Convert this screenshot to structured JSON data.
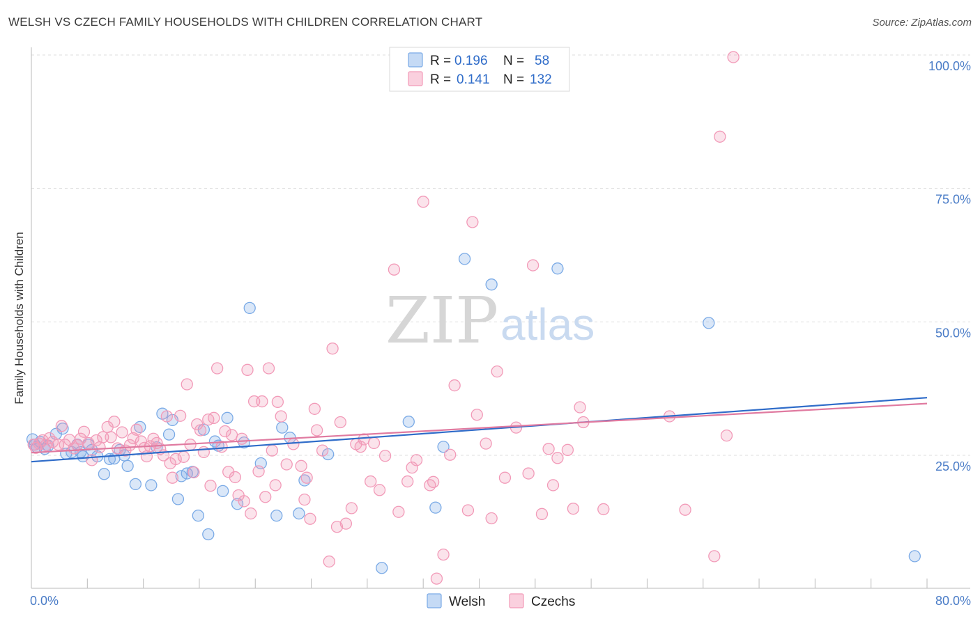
{
  "title": "WELSH VS CZECH FAMILY HOUSEHOLDS WITH CHILDREN CORRELATION CHART",
  "source": "Source: ZipAtlas.com",
  "watermark": {
    "zip": "ZIP",
    "atlas": "atlas"
  },
  "legend_box": {
    "rows": [
      {
        "r_label": "R = ",
        "r_value": "0.196",
        "n_label": "N = ",
        "n_value": "58",
        "color": "#7aaae6"
      },
      {
        "r_label": "R = ",
        "r_value": "0.141",
        "n_label": "N = ",
        "n_value": "132",
        "color": "#f29ab8"
      }
    ]
  },
  "chart_data": {
    "type": "scatter",
    "title": "WELSH VS CZECH FAMILY HOUSEHOLDS WITH CHILDREN CORRELATION CHART",
    "xlabel": "",
    "ylabel": "Family Households with Children",
    "xlim": [
      0,
      80
    ],
    "ylim": [
      0,
      102
    ],
    "x_tick_labels": [
      "0.0%",
      "80.0%"
    ],
    "y_tick_labels": [
      "25.0%",
      "50.0%",
      "75.0%",
      "100.0%"
    ],
    "y_ticks": [
      25,
      50,
      75,
      100
    ],
    "grid": true,
    "legend_position": "bottom-center",
    "series": [
      {
        "name": "Welsh",
        "color": "#7aaae6",
        "line_color": "#2f6cc9",
        "trend": {
          "x": [
            0,
            80
          ],
          "y": [
            23.8,
            35.8
          ]
        },
        "points": [
          [
            0.1,
            28
          ],
          [
            0.3,
            27
          ],
          [
            0.5,
            26.5
          ],
          [
            0.8,
            27.5
          ],
          [
            1.2,
            26.2
          ],
          [
            1.5,
            26.8
          ],
          [
            2.2,
            29
          ],
          [
            2.8,
            30
          ],
          [
            3.1,
            25.3
          ],
          [
            3.6,
            25.6
          ],
          [
            4.1,
            27
          ],
          [
            4.4,
            25.6
          ],
          [
            4.6,
            24.8
          ],
          [
            5.1,
            27
          ],
          [
            5.4,
            26
          ],
          [
            5.9,
            24.8
          ],
          [
            6.5,
            21.5
          ],
          [
            7.0,
            24.3
          ],
          [
            7.4,
            24.4
          ],
          [
            7.9,
            26
          ],
          [
            8.3,
            25
          ],
          [
            8.6,
            23
          ],
          [
            9.3,
            19.6
          ],
          [
            9.7,
            30.3
          ],
          [
            10.7,
            19.4
          ],
          [
            11.2,
            26.5
          ],
          [
            11.7,
            32.8
          ],
          [
            12.3,
            28.9
          ],
          [
            12.6,
            31.6
          ],
          [
            13.1,
            16.8
          ],
          [
            13.4,
            21.1
          ],
          [
            13.9,
            21.6
          ],
          [
            14.4,
            21.9
          ],
          [
            14.9,
            13.7
          ],
          [
            15.4,
            29.8
          ],
          [
            15.8,
            10.2
          ],
          [
            16.4,
            27.6
          ],
          [
            16.7,
            26.8
          ],
          [
            17.1,
            18.3
          ],
          [
            17.5,
            32
          ],
          [
            18.4,
            15.9
          ],
          [
            19.0,
            27.4
          ],
          [
            19.5,
            52.6
          ],
          [
            20.5,
            23.5
          ],
          [
            21.9,
            13.7
          ],
          [
            22.4,
            30.2
          ],
          [
            23.1,
            28.3
          ],
          [
            23.9,
            14.1
          ],
          [
            24.4,
            20.3
          ],
          [
            26.5,
            25.2
          ],
          [
            31.3,
            3.9
          ],
          [
            33.7,
            31.3
          ],
          [
            36.1,
            15.2
          ],
          [
            36.8,
            26.6
          ],
          [
            38.7,
            61.8
          ],
          [
            41.1,
            57
          ],
          [
            47.0,
            60
          ],
          [
            60.5,
            49.8
          ],
          [
            78.9,
            6.1
          ]
        ]
      },
      {
        "name": "Czechs",
        "color": "#f29ab8",
        "line_color": "#e07aa0",
        "trend": {
          "x": [
            0,
            80
          ],
          "y": [
            25.5,
            34.7
          ]
        },
        "points": [
          [
            0.2,
            27
          ],
          [
            0.4,
            26.4
          ],
          [
            0.7,
            27.2
          ],
          [
            1.0,
            27.8
          ],
          [
            1.3,
            26.9
          ],
          [
            1.6,
            28.2
          ],
          [
            1.9,
            27.5
          ],
          [
            2.4,
            27
          ],
          [
            2.7,
            30.5
          ],
          [
            3.0,
            27
          ],
          [
            3.4,
            27.9
          ],
          [
            3.8,
            26.3
          ],
          [
            4.1,
            26.9
          ],
          [
            4.4,
            28.1
          ],
          [
            4.7,
            29.4
          ],
          [
            5.1,
            27.3
          ],
          [
            5.4,
            24.1
          ],
          [
            5.8,
            27.8
          ],
          [
            6.1,
            26.5
          ],
          [
            6.4,
            28.4
          ],
          [
            6.8,
            30.3
          ],
          [
            7.1,
            28.4
          ],
          [
            7.4,
            31.3
          ],
          [
            7.7,
            26.3
          ],
          [
            8.1,
            29.3
          ],
          [
            8.4,
            25.9
          ],
          [
            8.8,
            26.9
          ],
          [
            9.1,
            28.2
          ],
          [
            9.4,
            29.8
          ],
          [
            9.8,
            27.6
          ],
          [
            10.1,
            26.4
          ],
          [
            10.3,
            24.8
          ],
          [
            10.6,
            26.7
          ],
          [
            10.9,
            28.1
          ],
          [
            11.2,
            27.3
          ],
          [
            11.5,
            26.2
          ],
          [
            11.8,
            25
          ],
          [
            12.1,
            32.3
          ],
          [
            12.4,
            23.5
          ],
          [
            12.6,
            20.8
          ],
          [
            12.9,
            24.3
          ],
          [
            13.3,
            32.4
          ],
          [
            13.6,
            24.7
          ],
          [
            13.9,
            38.3
          ],
          [
            14.2,
            27
          ],
          [
            14.5,
            21.8
          ],
          [
            14.8,
            30.8
          ],
          [
            15.1,
            29.7
          ],
          [
            15.4,
            25.6
          ],
          [
            15.8,
            31.7
          ],
          [
            16.0,
            19.3
          ],
          [
            16.3,
            32
          ],
          [
            16.6,
            41.3
          ],
          [
            17.0,
            26.6
          ],
          [
            17.3,
            29.5
          ],
          [
            17.6,
            21.9
          ],
          [
            17.9,
            28.8
          ],
          [
            18.2,
            20.9
          ],
          [
            18.5,
            17.5
          ],
          [
            18.8,
            28.1
          ],
          [
            19.0,
            16.4
          ],
          [
            19.3,
            41
          ],
          [
            19.6,
            14.1
          ],
          [
            19.9,
            35.1
          ],
          [
            20.3,
            22
          ],
          [
            20.6,
            35.1
          ],
          [
            20.9,
            17.2
          ],
          [
            21.2,
            41.3
          ],
          [
            21.5,
            25.9
          ],
          [
            21.8,
            19.4
          ],
          [
            22.0,
            35
          ],
          [
            22.3,
            32.3
          ],
          [
            22.8,
            23.3
          ],
          [
            23.4,
            27.1
          ],
          [
            24.1,
            23
          ],
          [
            24.4,
            16.7
          ],
          [
            24.6,
            20.8
          ],
          [
            24.9,
            13.1
          ],
          [
            25.3,
            33.7
          ],
          [
            25.5,
            29.7
          ],
          [
            26.0,
            25.9
          ],
          [
            26.6,
            5.1
          ],
          [
            26.9,
            45
          ],
          [
            27.3,
            11.6
          ],
          [
            27.6,
            31.2
          ],
          [
            28.1,
            12.2
          ],
          [
            28.6,
            15.1
          ],
          [
            29.0,
            27.1
          ],
          [
            29.4,
            26.6
          ],
          [
            29.7,
            28
          ],
          [
            30.3,
            20.1
          ],
          [
            30.6,
            27.3
          ],
          [
            31.1,
            18.5
          ],
          [
            31.6,
            24.9
          ],
          [
            32.4,
            59.8
          ],
          [
            32.8,
            14.4
          ],
          [
            33.6,
            20.1
          ],
          [
            34.0,
            22.7
          ],
          [
            34.4,
            24.1
          ],
          [
            35.0,
            72.5
          ],
          [
            35.6,
            19.4
          ],
          [
            35.9,
            20
          ],
          [
            36.2,
            1.9
          ],
          [
            36.8,
            6.4
          ],
          [
            37.4,
            25.1
          ],
          [
            37.8,
            38.1
          ],
          [
            39.0,
            14.7
          ],
          [
            39.4,
            68.7
          ],
          [
            39.8,
            32.6
          ],
          [
            40.6,
            27.2
          ],
          [
            41.1,
            13.2
          ],
          [
            41.6,
            40.7
          ],
          [
            42.3,
            20.8
          ],
          [
            43.3,
            30.2
          ],
          [
            44.4,
            21.6
          ],
          [
            44.8,
            60.6
          ],
          [
            45.6,
            14
          ],
          [
            46.2,
            26.2
          ],
          [
            46.6,
            19.4
          ],
          [
            47.0,
            24.5
          ],
          [
            47.9,
            26
          ],
          [
            48.4,
            15
          ],
          [
            49.0,
            34
          ],
          [
            49.3,
            31.2
          ],
          [
            51.1,
            14.9
          ],
          [
            57.0,
            32.3
          ],
          [
            58.4,
            14.8
          ],
          [
            61.0,
            6.1
          ],
          [
            61.5,
            84.7
          ],
          [
            62.1,
            28.7
          ],
          [
            62.7,
            99.6
          ]
        ]
      }
    ]
  },
  "bottom_legend": {
    "items": [
      {
        "label": "Welsh"
      },
      {
        "label": "Czechs"
      }
    ]
  }
}
